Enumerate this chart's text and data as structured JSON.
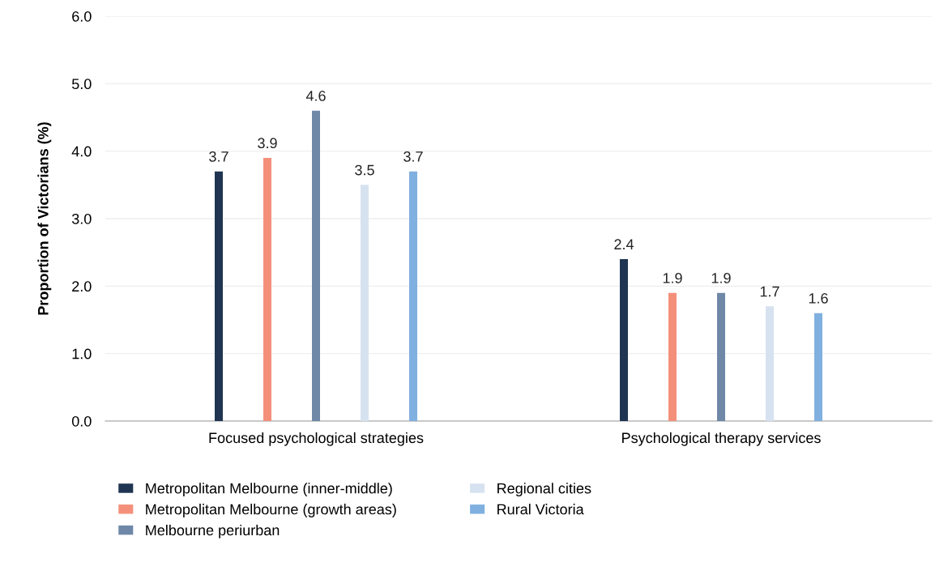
{
  "chart_data": {
    "type": "bar",
    "ylabel": "Proportion of Victorians (%)",
    "categories": [
      "Focused psychological strategies",
      "Psychological therapy services"
    ],
    "series": [
      {
        "name": "Metropolitan Melbourne (inner-middle)",
        "color": "#1f3552",
        "values": [
          3.7,
          2.4
        ]
      },
      {
        "name": "Metropolitan Melbourne (growth areas)",
        "color": "#f4907a",
        "values": [
          3.9,
          1.9
        ]
      },
      {
        "name": "Melbourne periurban",
        "color": "#6f88a8",
        "values": [
          4.6,
          1.9
        ]
      },
      {
        "name": "Regional cities",
        "color": "#d6e2f0",
        "values": [
          3.5,
          1.7
        ]
      },
      {
        "name": "Rural Victoria",
        "color": "#7fb0e0",
        "values": [
          3.7,
          1.6
        ]
      }
    ],
    "ylim": [
      0,
      6
    ],
    "yticks": [
      {
        "value": 0,
        "label": "0.0"
      },
      {
        "value": 1,
        "label": "1.0"
      },
      {
        "value": 2,
        "label": "2.0"
      },
      {
        "value": 3,
        "label": "3.0"
      },
      {
        "value": 4,
        "label": "4.0"
      },
      {
        "value": 5,
        "label": "5.0"
      },
      {
        "value": 6,
        "label": "6.0"
      }
    ],
    "grid": "y",
    "legend": "bottom",
    "data_labels": true
  }
}
